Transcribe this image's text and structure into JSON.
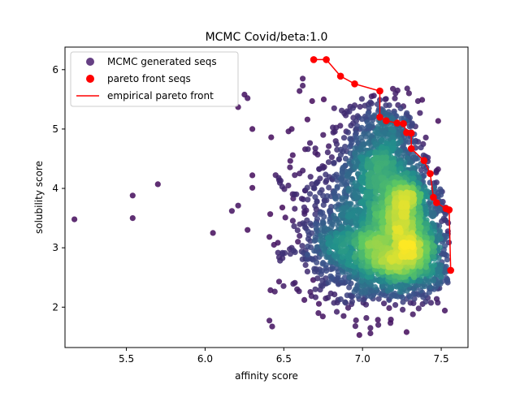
{
  "chart_data": {
    "type": "scatter",
    "title": "MCMC Covid/beta:1.0",
    "xlabel": "affinity score",
    "ylabel": "solubility score",
    "xlim": [
      5.11,
      7.67
    ],
    "ylim": [
      1.32,
      6.38
    ],
    "xticks": [
      5.5,
      6.0,
      6.5,
      7.0,
      7.5
    ],
    "xtick_labels": [
      "5.5",
      "6.0",
      "6.5",
      "7.0",
      "7.5"
    ],
    "yticks": [
      2,
      3,
      4,
      5,
      6
    ],
    "ytick_labels": [
      "2",
      "3",
      "4",
      "5",
      "6"
    ],
    "grid": false,
    "legend": {
      "placement": "top-left",
      "entries": [
        {
          "label": "MCMC generated seqs",
          "kind": "marker",
          "color": "#4b1f6f"
        },
        {
          "label": "pareto front seqs",
          "kind": "marker",
          "color": "#ff0000"
        },
        {
          "label": "empirical pareto front",
          "kind": "line",
          "color": "#ff0000"
        }
      ]
    },
    "colormap": "viridis (point density)",
    "series": [
      {
        "name": "MCMC generated seqs",
        "kind": "scatter",
        "color_by": "density",
        "points": [
          [
            5.17,
            3.48
          ],
          [
            5.54,
            3.88
          ],
          [
            5.54,
            3.5
          ],
          [
            5.7,
            4.07
          ],
          [
            6.05,
            3.25
          ],
          [
            6.17,
            3.62
          ],
          [
            6.21,
            3.71
          ],
          [
            6.21,
            5.37
          ],
          [
            6.25,
            5.58
          ],
          [
            6.27,
            5.52
          ],
          [
            6.27,
            3.3
          ],
          [
            6.3,
            5.0
          ],
          [
            6.3,
            4.22
          ],
          [
            6.3,
            4.01
          ],
          [
            6.42,
            4.86
          ],
          [
            6.47,
            4.14
          ],
          [
            6.48,
            4.13
          ],
          [
            6.47,
            2.84
          ],
          [
            6.47,
            2.43
          ],
          [
            6.51,
            3.51
          ],
          [
            6.53,
            4.96
          ],
          [
            6.55,
            5.0
          ],
          [
            6.57,
            2.41
          ],
          [
            6.6,
            5.64
          ],
          [
            6.62,
            5.73
          ],
          [
            6.62,
            5.85
          ],
          [
            6.65,
            5.16
          ],
          [
            6.68,
            5.47
          ],
          [
            6.72,
            1.9
          ],
          [
            6.78,
            2.16
          ],
          [
            6.88,
            1.85
          ],
          [
            6.93,
            2.05
          ],
          [
            6.98,
            1.53
          ],
          [
            7.05,
            1.56
          ],
          [
            7.05,
            1.65
          ],
          [
            7.1,
            1.7
          ],
          [
            7.18,
            1.79
          ],
          [
            7.28,
            1.58
          ],
          [
            7.32,
            1.88
          ],
          [
            7.2,
            5.1
          ],
          [
            7.1,
            5.3
          ],
          [
            7.05,
            5.45
          ],
          [
            6.95,
            5.4
          ],
          [
            6.82,
            5.35
          ],
          [
            6.75,
            4.9
          ],
          [
            6.7,
            4.6
          ],
          [
            6.62,
            4.3
          ],
          [
            6.58,
            3.9
          ],
          [
            6.6,
            3.2
          ],
          [
            6.55,
            3.0
          ],
          [
            6.65,
            2.6
          ],
          [
            6.7,
            2.3
          ],
          [
            6.85,
            2.4
          ],
          [
            7.4,
            2.2
          ],
          [
            7.45,
            2.45
          ],
          [
            7.48,
            2.7
          ]
        ]
      },
      {
        "name": "pareto front seqs",
        "kind": "scatter",
        "color": "#ff0000",
        "points": [
          [
            6.69,
            6.17
          ],
          [
            6.77,
            6.17
          ],
          [
            6.86,
            5.89
          ],
          [
            6.95,
            5.76
          ],
          [
            7.11,
            5.64
          ],
          [
            7.11,
            5.2
          ],
          [
            7.15,
            5.14
          ],
          [
            7.22,
            5.1
          ],
          [
            7.26,
            5.09
          ],
          [
            7.28,
            4.94
          ],
          [
            7.31,
            4.93
          ],
          [
            7.31,
            4.67
          ],
          [
            7.39,
            4.47
          ],
          [
            7.43,
            4.25
          ],
          [
            7.45,
            3.85
          ],
          [
            7.47,
            3.76
          ],
          [
            7.53,
            3.66
          ],
          [
            7.55,
            3.64
          ],
          [
            7.56,
            2.62
          ]
        ]
      },
      {
        "name": "empirical pareto front",
        "kind": "line",
        "color": "#ff0000",
        "points": [
          [
            6.69,
            6.17
          ],
          [
            6.77,
            6.17
          ],
          [
            6.86,
            5.89
          ],
          [
            6.95,
            5.76
          ],
          [
            7.11,
            5.64
          ],
          [
            7.11,
            5.2
          ],
          [
            7.15,
            5.14
          ],
          [
            7.22,
            5.1
          ],
          [
            7.26,
            5.09
          ],
          [
            7.28,
            4.94
          ],
          [
            7.31,
            4.93
          ],
          [
            7.31,
            4.67
          ],
          [
            7.39,
            4.47
          ],
          [
            7.43,
            4.25
          ],
          [
            7.45,
            3.85
          ],
          [
            7.47,
            3.76
          ],
          [
            7.53,
            3.66
          ],
          [
            7.55,
            3.64
          ],
          [
            7.56,
            2.62
          ]
        ]
      }
    ],
    "density_regions": [
      {
        "center": [
          7.12,
          4.4
        ],
        "spread": [
          0.12,
          0.55
        ],
        "count": 900
      },
      {
        "center": [
          7.15,
          3.0
        ],
        "spread": [
          0.22,
          0.35
        ],
        "count": 1300
      },
      {
        "center": [
          7.27,
          3.8
        ],
        "spread": [
          0.1,
          0.25
        ],
        "count": 500
      },
      {
        "center": [
          7.28,
          3.1
        ],
        "spread": [
          0.12,
          0.3
        ],
        "count": 500
      },
      {
        "center": [
          6.95,
          3.4
        ],
        "spread": [
          0.22,
          0.7
        ],
        "count": 600
      },
      {
        "center": [
          7.25,
          2.55
        ],
        "spread": [
          0.18,
          0.2
        ],
        "count": 300
      }
    ]
  }
}
